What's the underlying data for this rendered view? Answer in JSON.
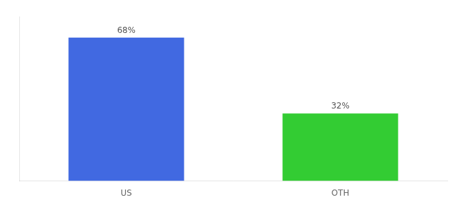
{
  "chart_data": {
    "type": "bar",
    "categories": [
      "US",
      "OTH"
    ],
    "values": [
      68,
      32
    ],
    "value_labels": [
      "68%",
      "32%"
    ],
    "colors": [
      "#4169e1",
      "#33cc33"
    ],
    "ylim": [
      0,
      78
    ],
    "data_labels": true,
    "tick_labels": "x",
    "grid": false
  }
}
